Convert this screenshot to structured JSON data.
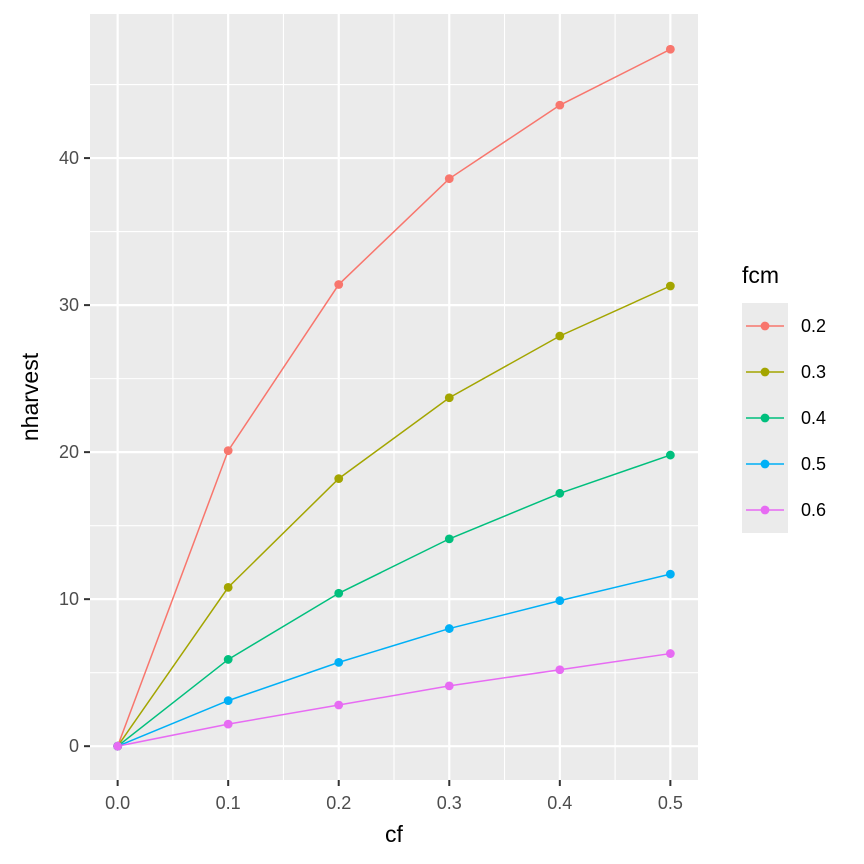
{
  "chart_data": {
    "type": "line",
    "title": "",
    "xlabel": "cf",
    "ylabel": "nharvest",
    "x": [
      0.0,
      0.1,
      0.2,
      0.3,
      0.4,
      0.5
    ],
    "x_ticks": [
      "0.0",
      "0.1",
      "0.2",
      "0.3",
      "0.4",
      "0.5"
    ],
    "y_ticks": [
      "0",
      "10",
      "20",
      "30",
      "40"
    ],
    "xlim": [
      -0.025,
      0.525
    ],
    "ylim": [
      -2.3,
      49.8
    ],
    "grid": true,
    "legend": {
      "title": "fcm",
      "position": "right"
    },
    "series": [
      {
        "name": "0.2",
        "color": "#F8766D",
        "values": [
          0,
          20.1,
          31.4,
          38.6,
          43.6,
          47.4
        ]
      },
      {
        "name": "0.3",
        "color": "#A3A500",
        "values": [
          0,
          10.8,
          18.2,
          23.7,
          27.9,
          31.3
        ]
      },
      {
        "name": "0.4",
        "color": "#00BF7D",
        "values": [
          0,
          5.9,
          10.4,
          14.1,
          17.2,
          19.8
        ]
      },
      {
        "name": "0.5",
        "color": "#00B0F6",
        "values": [
          0,
          3.1,
          5.7,
          8.0,
          9.9,
          11.7
        ]
      },
      {
        "name": "0.6",
        "color": "#E76BF3",
        "values": [
          0,
          1.5,
          2.8,
          4.1,
          5.2,
          6.3
        ]
      }
    ]
  }
}
